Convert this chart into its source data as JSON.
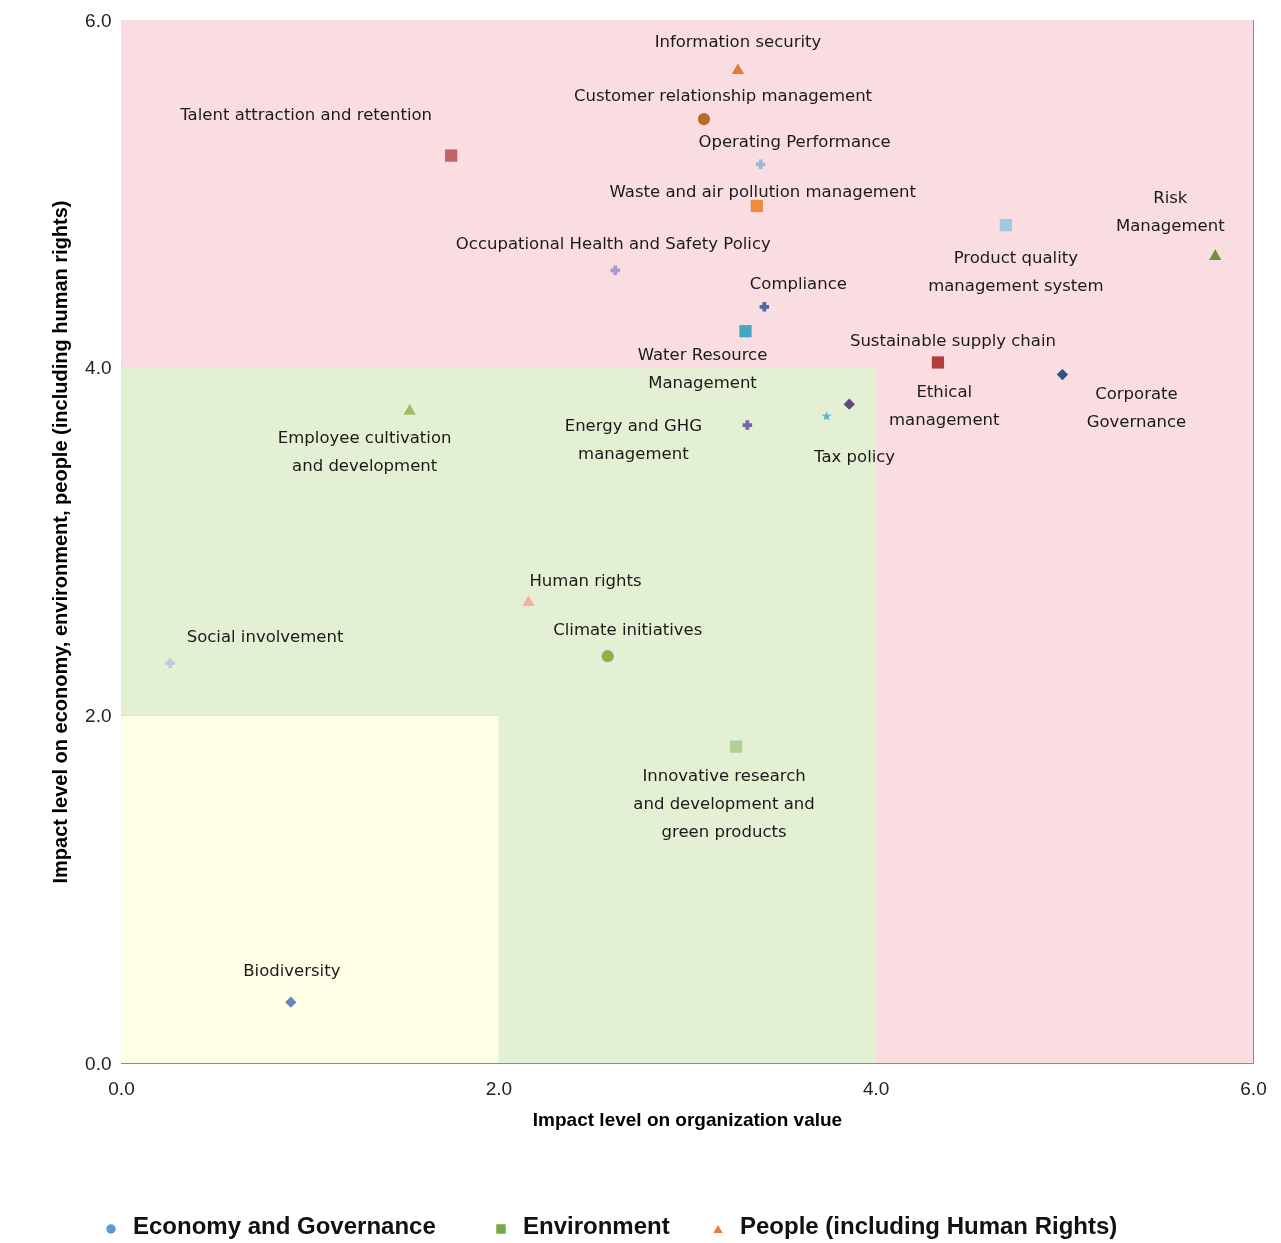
{
  "chart_data": {
    "type": "scatter",
    "xlabel": "Impact level on organization value",
    "ylabel": "Impact level on economy, environment, people (including human rights)",
    "xlim": [
      0,
      6
    ],
    "ylim": [
      0,
      6
    ],
    "xticks": [
      {
        "value": 0,
        "label": "0.0"
      },
      {
        "value": 2,
        "label": "2.0"
      },
      {
        "value": 4,
        "label": "4.0"
      },
      {
        "value": 6,
        "label": "6.0"
      }
    ],
    "yticks": [
      {
        "value": 0,
        "label": "0.0"
      },
      {
        "value": 2,
        "label": "2.0"
      },
      {
        "value": 4,
        "label": "4.0"
      },
      {
        "value": 6,
        "label": "6.0"
      }
    ],
    "grid": true,
    "legend": "bottom",
    "bands": [
      {
        "axis": "y",
        "from": 0,
        "to": 2,
        "color": "#fefee4"
      },
      {
        "axis": "x",
        "from": 2,
        "to": 4,
        "color": "#e3f0d3"
      },
      {
        "axis": "y",
        "from": 2,
        "to": 4,
        "color": "#e3f0d3"
      },
      {
        "axis": "y",
        "from": 4,
        "to": 6,
        "color": "#fadde0"
      },
      {
        "axis": "x",
        "from": 4,
        "to": 6,
        "color": "#fadde0"
      }
    ],
    "series": [
      {
        "name": "Information security",
        "color": "#e07b39",
        "marker": "triangle",
        "x": [
          3.27
        ],
        "values": [
          5.72
        ]
      },
      {
        "name": "Customer relationship management",
        "color": "#b8692e",
        "marker": "circle",
        "x": [
          3.09
        ],
        "values": [
          5.43
        ]
      },
      {
        "name": "Operating Performance",
        "color": "#9fb5d6",
        "marker": "cross",
        "x": [
          3.39
        ],
        "values": [
          5.17
        ]
      },
      {
        "name": "Waste and air pollution management",
        "color": "#f08a3c",
        "marker": "square",
        "x": [
          3.37
        ],
        "values": [
          4.93
        ]
      },
      {
        "name": "Talent attraction and retention",
        "color": "#c0646a",
        "marker": "square",
        "x": [
          1.75
        ],
        "values": [
          5.22
        ]
      },
      {
        "name": "Occupational Health and Safety Policy",
        "color": "#a89ccc",
        "marker": "cross",
        "x": [
          2.62
        ],
        "values": [
          4.56
        ]
      },
      {
        "name": "Compliance",
        "color": "#4a6aa8",
        "marker": "cross",
        "x": [
          3.41
        ],
        "values": [
          4.35
        ]
      },
      {
        "name": "Water Resource\nManagement",
        "color": "#3fa8c4",
        "marker": "square",
        "x": [
          3.31
        ],
        "values": [
          4.21
        ]
      },
      {
        "name": "Sustainable supply chain",
        "color": "#b0403e",
        "marker": "square",
        "x": [
          4.33
        ],
        "values": [
          4.03
        ]
      },
      {
        "name": "Product quality\nmanagement system",
        "color": "#9ccbdb",
        "marker": "square",
        "x": [
          4.69
        ],
        "values": [
          4.82
        ]
      },
      {
        "name": "Risk\nManagement",
        "color": "#6e9140",
        "marker": "triangle",
        "x": [
          5.8
        ],
        "values": [
          4.65
        ]
      },
      {
        "name": "Corporate\nGovernance",
        "color": "#2f5287",
        "marker": "diamond",
        "x": [
          4.99
        ],
        "values": [
          3.96
        ]
      },
      {
        "name": "Ethical\nmanagement",
        "color": "#614a7c",
        "marker": "diamond",
        "x": [
          3.86
        ],
        "values": [
          3.79
        ]
      },
      {
        "name": "Tax policy",
        "color": "#5bb8d4",
        "marker": "star",
        "x": [
          3.74
        ],
        "values": [
          3.72
        ]
      },
      {
        "name": "Energy and GHG\nmanagement",
        "color": "#7a64a8",
        "marker": "cross",
        "x": [
          3.32
        ],
        "values": [
          3.67
        ]
      },
      {
        "name": "Employee cultivation\nand development",
        "color": "#9cbc66",
        "marker": "triangle",
        "x": [
          1.53
        ],
        "values": [
          3.76
        ]
      },
      {
        "name": "Human rights",
        "color": "#f7b09a",
        "marker": "triangle",
        "x": [
          2.16
        ],
        "values": [
          2.66
        ]
      },
      {
        "name": "Climate initiatives",
        "color": "#8cb150",
        "marker": "circle",
        "x": [
          2.58
        ],
        "values": [
          2.34
        ]
      },
      {
        "name": "Social involvement",
        "color": "#bccde0",
        "marker": "cross",
        "x": [
          0.26
        ],
        "values": [
          2.3
        ]
      },
      {
        "name": "Innovative research\nand development and\ngreen products",
        "color": "#b4cf94",
        "marker": "square",
        "x": [
          3.26
        ],
        "values": [
          1.82
        ]
      },
      {
        "name": "Biodiversity",
        "color": "#6688c2",
        "marker": "diamond",
        "x": [
          0.9
        ],
        "values": [
          0.35
        ]
      },
      {
        "name": "Economy and Governance",
        "color": "#5b9bd5",
        "marker": "circle"
      },
      {
        "name": "Environment",
        "color": "#70ad47",
        "marker": "square"
      },
      {
        "name": "People (including Human Rights)",
        "color": "#ed7d31",
        "marker": "triangle"
      }
    ]
  }
}
